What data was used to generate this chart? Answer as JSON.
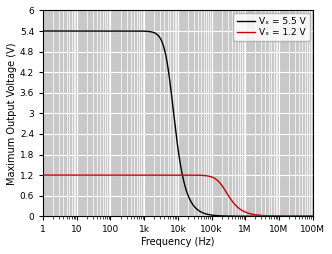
{
  "title": "",
  "xlabel": "Frequency (Hz)",
  "ylabel": "Maximum Output Voltage (V)",
  "xlim": [
    1,
    100000000.0
  ],
  "ylim": [
    0,
    6
  ],
  "yticks": [
    0,
    0.6,
    1.2,
    1.8,
    2.4,
    3.0,
    3.6,
    4.2,
    4.8,
    5.4,
    6.0
  ],
  "ytick_labels": [
    "0",
    "0.6",
    "1.2",
    "1.8",
    "2.4",
    "3",
    "3.6",
    "4.2",
    "4.8",
    "5.4",
    "6"
  ],
  "line1_label": "Vₓ = 5.5 V",
  "line2_label": "Vₓ = 1.2 V",
  "line1_color": "#000000",
  "line2_color": "#cc0000",
  "line1_vmax": 5.4,
  "line2_vmax": 1.2,
  "line1_fc": 6000,
  "line2_fc": 220000,
  "line1_order": 1.8,
  "line2_order": 1.5,
  "bg_color": "#c8c8c8",
  "grid_color_major": "#ffffff",
  "grid_color_minor": "#ffffff",
  "legend_fontsize": 6.5,
  "axis_fontsize": 7,
  "tick_fontsize": 6.5,
  "x_tick_positions": [
    1,
    10,
    100,
    1000,
    10000,
    100000,
    1000000,
    10000000,
    100000000
  ],
  "x_tick_labels": [
    "1",
    "10",
    "100",
    "1k",
    "10k",
    "100k",
    "1M",
    "10M",
    "100M"
  ]
}
